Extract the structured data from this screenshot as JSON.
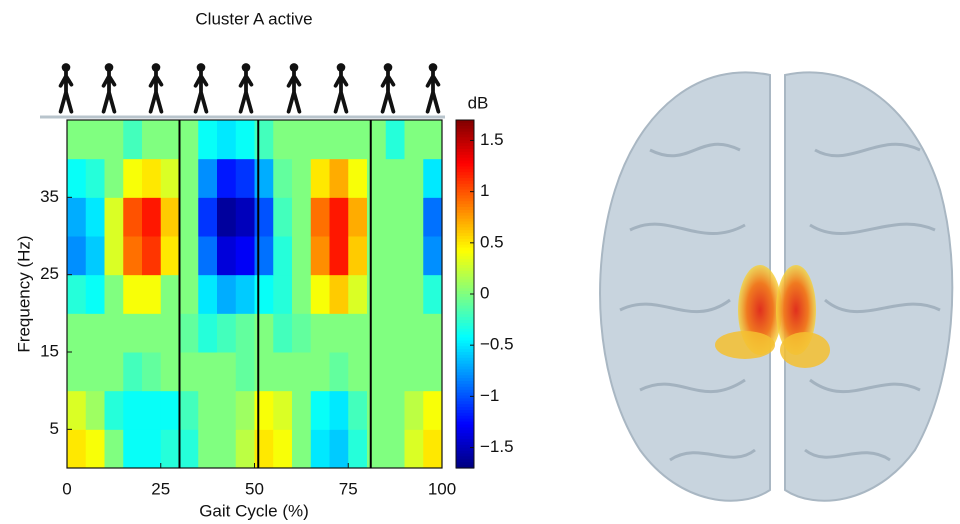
{
  "chart_data": {
    "type": "heatmap",
    "title": "Cluster A active",
    "x_label": "Gait Cycle (%)",
    "y_label": "Frequency (Hz)",
    "colorbar_label": "dB",
    "x": [
      2.5,
      7.5,
      12.5,
      17.5,
      22.5,
      27.5,
      32.5,
      37.5,
      42.5,
      47.5,
      52.5,
      57.5,
      62.5,
      67.5,
      72.5,
      77.5,
      82.5,
      87.5,
      92.5,
      97.5
    ],
    "y": [
      2.5,
      7.5,
      12.5,
      17.5,
      22.5,
      27.5,
      32.5,
      37.5,
      42.5
    ],
    "z": [
      [
        0.5,
        0.4,
        0,
        -0.4,
        -0.4,
        -0.3,
        -0.3,
        0,
        0,
        0.2,
        0.5,
        0.4,
        0,
        -0.5,
        -0.6,
        -0.3,
        0,
        0,
        0.3,
        0.5
      ],
      [
        0.3,
        0.1,
        -0.3,
        -0.4,
        -0.4,
        -0.4,
        -0.2,
        0,
        0,
        0.1,
        0.4,
        0.3,
        0,
        -0.4,
        -0.5,
        -0.2,
        0,
        0,
        0.2,
        0.4
      ],
      [
        0,
        0,
        0,
        -0.2,
        -0.1,
        0,
        0,
        0,
        0,
        -0.1,
        0,
        0,
        0,
        0,
        -0.1,
        0,
        0,
        0,
        0,
        0
      ],
      [
        0,
        0,
        0,
        0,
        0,
        0,
        -0.1,
        -0.3,
        -0.2,
        -0.1,
        0,
        -0.2,
        -0.1,
        0,
        0,
        0,
        0,
        0,
        0,
        0
      ],
      [
        -0.3,
        -0.4,
        0,
        0.4,
        0.4,
        0,
        0,
        -0.5,
        -0.7,
        -0.6,
        -0.4,
        -0.3,
        0,
        0.4,
        0.6,
        0.3,
        0,
        0,
        0,
        -0.3
      ],
      [
        -0.8,
        -0.6,
        0.3,
        0.9,
        1.1,
        0.5,
        0,
        -0.9,
        -1.4,
        -1.3,
        -0.9,
        -0.3,
        0,
        0.8,
        1.2,
        0.6,
        0,
        0,
        0,
        -0.8
      ],
      [
        -0.7,
        -0.5,
        0.3,
        1.0,
        1.2,
        0.6,
        0,
        -1.1,
        -1.6,
        -1.5,
        -1.0,
        -0.2,
        0,
        0.9,
        1.2,
        0.7,
        0,
        0,
        0,
        -0.9
      ],
      [
        -0.4,
        -0.3,
        0,
        0.4,
        0.5,
        0.3,
        0,
        -0.8,
        -1.2,
        -1.1,
        -0.7,
        -0.1,
        0,
        0.5,
        0.7,
        0.4,
        0,
        0,
        0,
        -0.5
      ],
      [
        0,
        0,
        0,
        -0.2,
        0,
        0,
        0,
        -0.4,
        -0.5,
        -0.4,
        -0.2,
        0,
        0,
        0,
        0,
        0,
        0,
        -0.3,
        0,
        0
      ]
    ],
    "event_lines": [
      30,
      51,
      81
    ],
    "xlim": [
      0,
      100
    ],
    "ylim": [
      0,
      45
    ],
    "xticks": [
      0,
      25,
      50,
      75,
      100
    ],
    "yticks": [
      5,
      15,
      25,
      35
    ],
    "clim": [
      -1.7,
      1.7
    ],
    "cticks": [
      {
        "value": -1.5,
        "label": "−1.5"
      },
      {
        "value": -1,
        "label": "−1"
      },
      {
        "value": -0.5,
        "label": "−0.5"
      },
      0,
      0.5,
      1,
      1.5
    ],
    "colormap": "jet"
  }
}
